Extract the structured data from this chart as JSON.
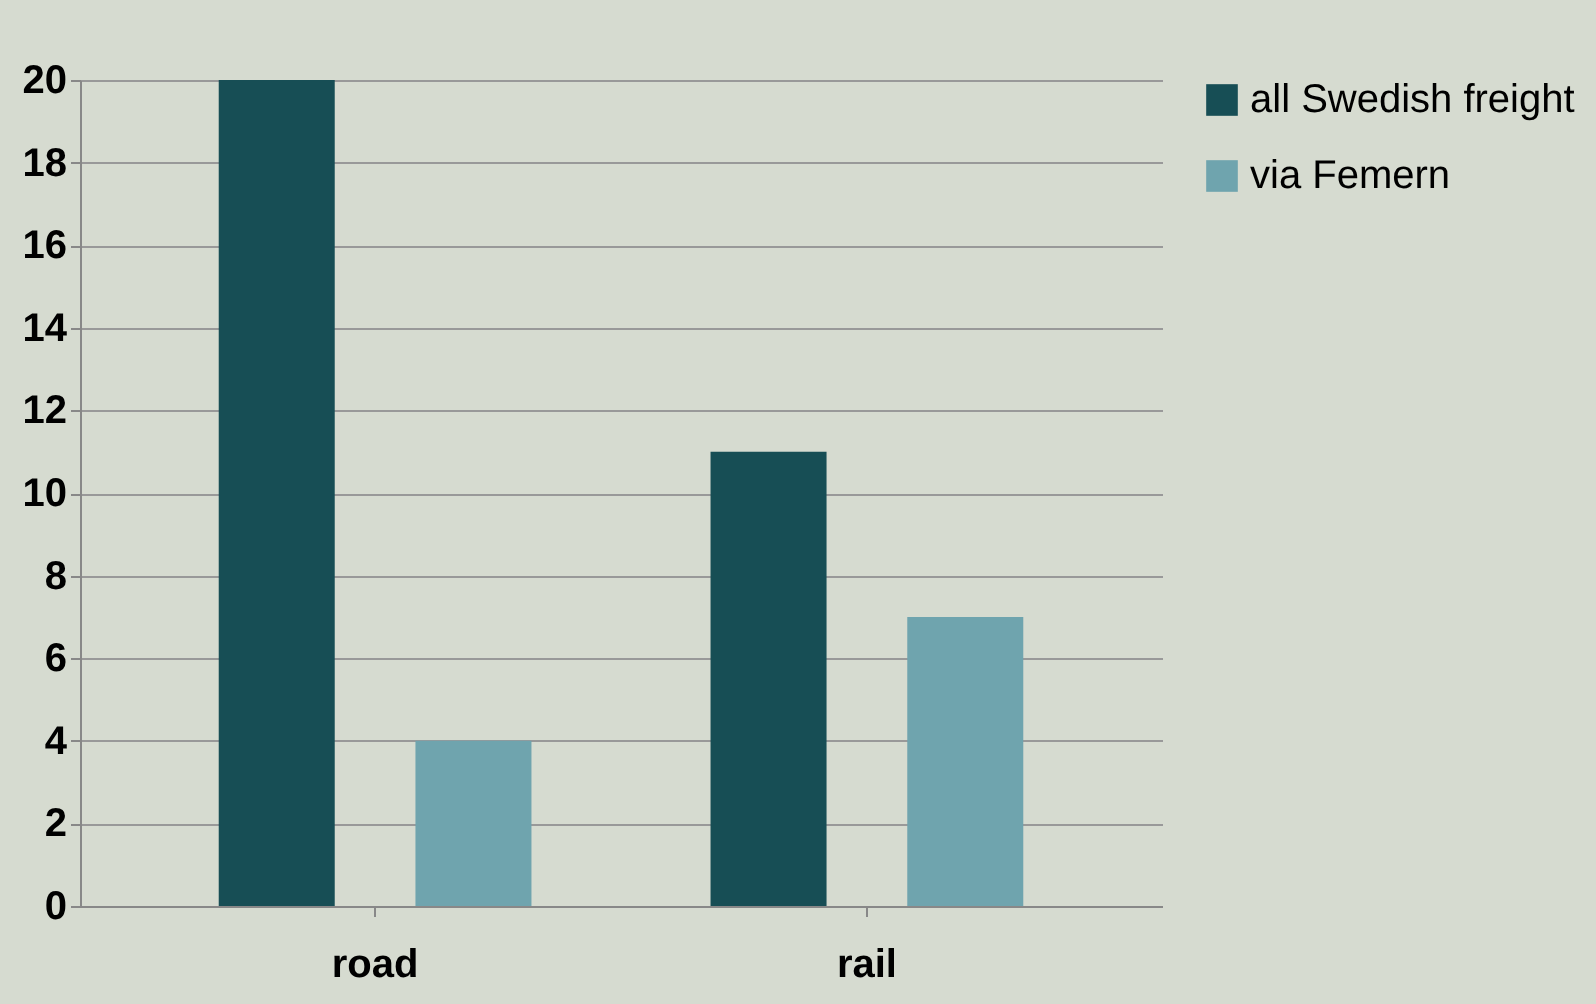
{
  "chart_data": {
    "type": "bar",
    "categories": [
      "road",
      "rail"
    ],
    "series": [
      {
        "name": "all Swedish freight",
        "color": "#174e55",
        "values": [
          20,
          11
        ]
      },
      {
        "name": "via Femern",
        "color": "#6fa4ae",
        "values": [
          4,
          7
        ]
      }
    ],
    "ylim": [
      0,
      20
    ],
    "yticks": [
      0,
      2,
      4,
      6,
      8,
      10,
      12,
      14,
      16,
      18,
      20
    ],
    "grid": "y",
    "legend": "right"
  }
}
